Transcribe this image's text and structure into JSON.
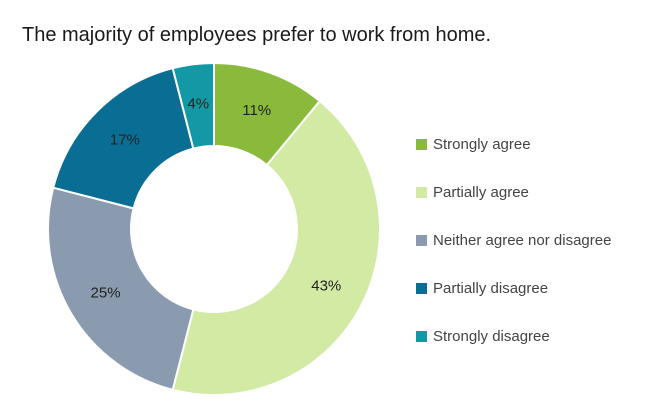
{
  "title": "The majority of employees prefer to work from home.",
  "chart_data": {
    "type": "pie",
    "title": "The majority of employees prefer to work from home.",
    "hole": true,
    "legend_position": "right",
    "slices": [
      {
        "label": "Strongly agree",
        "value": 11,
        "value_label": "11%",
        "color": "#8aba3b"
      },
      {
        "label": "Partially agree",
        "value": 43,
        "value_label": "43%",
        "color": "#d3eaa4"
      },
      {
        "label": "Neither agree nor disagree",
        "value": 25,
        "value_label": "25%",
        "color": "#8a9bb0"
      },
      {
        "label": "Partially disagree",
        "value": 17,
        "value_label": "17%",
        "color": "#0a6e94"
      },
      {
        "label": "Strongly disagree",
        "value": 4,
        "value_label": "4%",
        "color": "#1399a5"
      }
    ]
  }
}
